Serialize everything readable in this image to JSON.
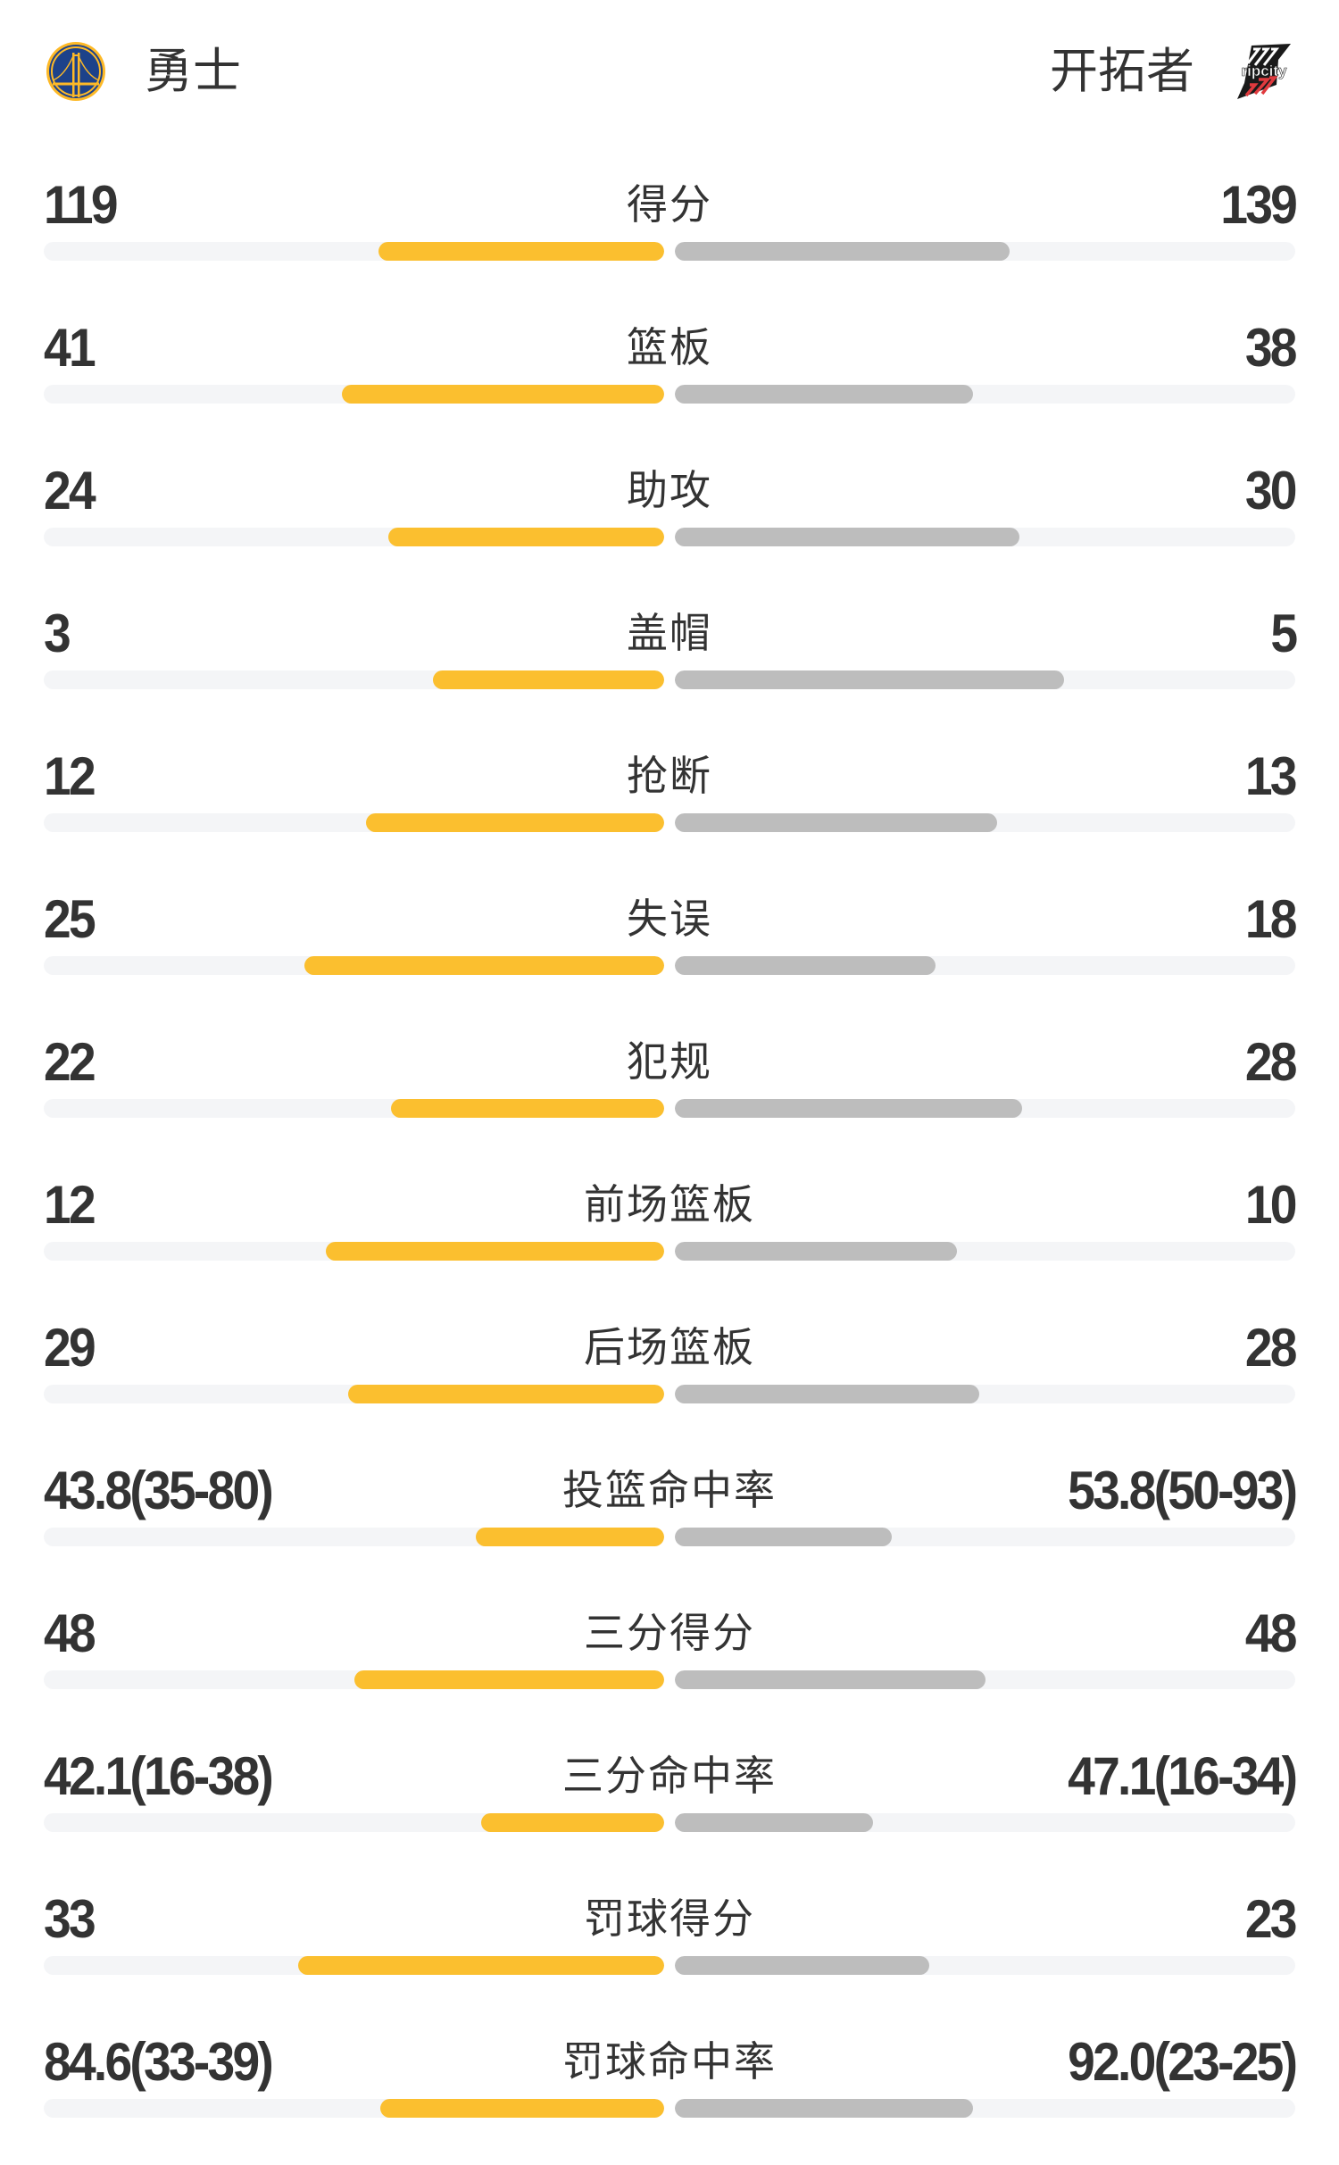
{
  "header": {
    "home_team": "勇士",
    "away_team": "开拓者",
    "home_logo_icon": "warriors-bridge-logo",
    "away_logo_icon": "blazers-ripcity-logo",
    "away_logo_text": "ripcity"
  },
  "colors": {
    "home_bar": "#FBBF2F",
    "away_bar": "#BDBDBD",
    "track": "#F4F5F7",
    "text": "#333333"
  },
  "stats": [
    {
      "label": "得分",
      "home": "119",
      "away": "139",
      "home_fill": 0.46,
      "away_fill": 0.54
    },
    {
      "label": "篮板",
      "home": "41",
      "away": "38",
      "home_fill": 0.52,
      "away_fill": 0.48
    },
    {
      "label": "助攻",
      "home": "24",
      "away": "30",
      "home_fill": 0.445,
      "away_fill": 0.555
    },
    {
      "label": "盖帽",
      "home": "3",
      "away": "5",
      "home_fill": 0.372,
      "away_fill": 0.628
    },
    {
      "label": "抢断",
      "home": "12",
      "away": "13",
      "home_fill": 0.48,
      "away_fill": 0.52
    },
    {
      "label": "失误",
      "home": "25",
      "away": "18",
      "home_fill": 0.58,
      "away_fill": 0.42
    },
    {
      "label": "犯规",
      "home": "22",
      "away": "28",
      "home_fill": 0.44,
      "away_fill": 0.56
    },
    {
      "label": "前场篮板",
      "home": "12",
      "away": "10",
      "home_fill": 0.546,
      "away_fill": 0.454
    },
    {
      "label": "后场篮板",
      "home": "29",
      "away": "28",
      "home_fill": 0.509,
      "away_fill": 0.491
    },
    {
      "label": "投篮命中率",
      "home": "43.8(35-80)",
      "away": "53.8(50-93)",
      "home_fill": 0.304,
      "away_fill": 0.35
    },
    {
      "label": "三分得分",
      "home": "48",
      "away": "48",
      "home_fill": 0.5,
      "away_fill": 0.5
    },
    {
      "label": "三分命中率",
      "home": "42.1(16-38)",
      "away": "47.1(16-34)",
      "home_fill": 0.295,
      "away_fill": 0.32
    },
    {
      "label": "罚球得分",
      "home": "33",
      "away": "23",
      "home_fill": 0.59,
      "away_fill": 0.41
    },
    {
      "label": "罚球命中率",
      "home": "84.6(33-39)",
      "away": "92.0(23-25)",
      "home_fill": 0.458,
      "away_fill": 0.48
    }
  ]
}
